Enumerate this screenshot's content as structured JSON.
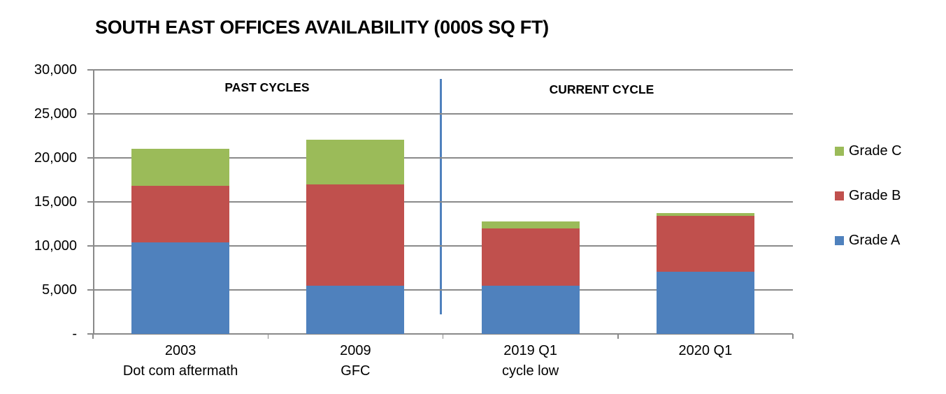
{
  "chart_data": {
    "type": "bar",
    "stacked": true,
    "title": "SOUTH EAST OFFICES AVAILABILITY (000S SQ FT)",
    "categories": [
      "2003",
      "2009",
      "2019 Q1",
      "2020 Q1"
    ],
    "category_sublabels": [
      "Dot com aftermath",
      "GFC",
      "cycle low",
      ""
    ],
    "series": [
      {
        "name": "Grade A",
        "color": "#4F81BD",
        "values": [
          10400,
          5500,
          5500,
          7100
        ]
      },
      {
        "name": "Grade B",
        "color": "#C0504D",
        "values": [
          6400,
          11500,
          6500,
          6300
        ]
      },
      {
        "name": "Grade C",
        "color": "#9BBB59",
        "values": [
          4200,
          5100,
          800,
          300
        ]
      }
    ],
    "totals": [
      21000,
      22100,
      12800,
      13700
    ],
    "ylim": [
      0,
      30000
    ],
    "ytick_step": 5000,
    "ytick_labels": [
      "-",
      "5,000",
      "10,000",
      "15,000",
      "20,000",
      "25,000",
      "30,000"
    ],
    "grid": true,
    "legend_position": "right",
    "legend_order_top_to_bottom": [
      "Grade C",
      "Grade B",
      "Grade A"
    ],
    "annotations": {
      "left_section_label": "PAST CYCLES",
      "right_section_label": "CURRENT CYCLE",
      "divider_after_category": "2009"
    }
  },
  "colors": {
    "grade_a": "#4F81BD",
    "grade_b": "#C0504D",
    "grade_c": "#9BBB59",
    "gridline": "#8A8A8A",
    "axis": "#8A8A8A",
    "divider": "#4F81BD",
    "text": "#000000",
    "background": "#FFFFFF"
  }
}
